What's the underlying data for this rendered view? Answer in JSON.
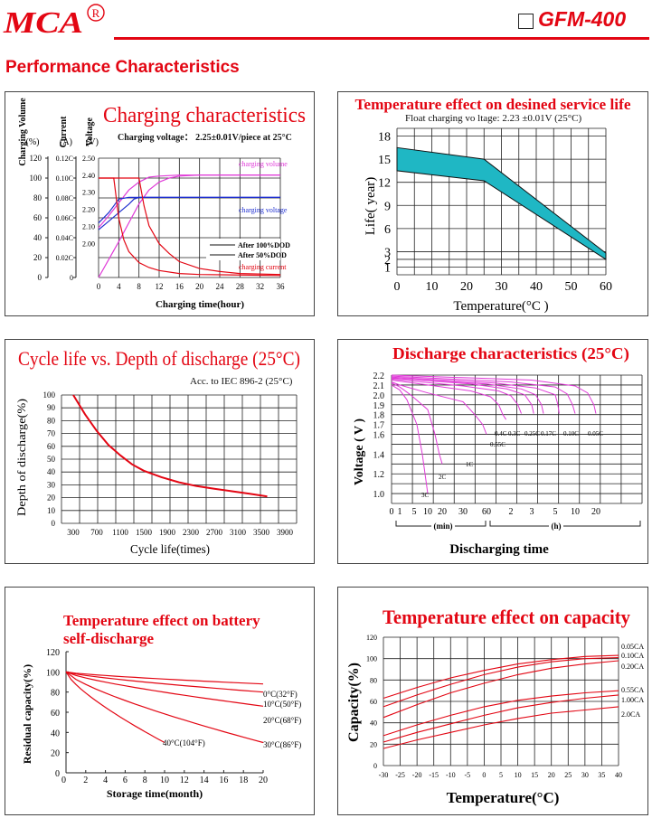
{
  "header": {
    "model": "GFM-400",
    "brand": "MCA",
    "registered": "R",
    "section_title": "Performance Characteristics"
  },
  "colors": {
    "brand": "#e30613",
    "accent_fill": "#1fb7c4",
    "magenta": "#e03ad8",
    "blue": "#2030d0"
  },
  "chart_data": [
    {
      "id": "charging",
      "type": "line",
      "title": "Charging characteristics",
      "subtitle": "Charging voltage： 2.25±0.01V/piece at 25°C",
      "xlabel": "Charging time(hour)",
      "axis_headers": [
        {
          "name": "Charging Volume",
          "unit": "(%)"
        },
        {
          "name": "Current",
          "unit": "(A)"
        },
        {
          "name": "Voltage",
          "unit": "(V)"
        }
      ],
      "x_ticks": [
        0,
        4,
        8,
        12,
        16,
        20,
        24,
        28,
        32,
        36
      ],
      "y_ticks_volume": [
        0,
        20,
        40,
        60,
        80,
        100,
        120
      ],
      "y_ticks_current": [
        "0",
        "0.02C",
        "0.04C",
        "0.06C",
        "0.08C",
        "0.10C",
        "0.12C"
      ],
      "y_ticks_voltage": [
        "2.00",
        "2.10",
        "2.20",
        "2.30",
        "2.40",
        "2.50"
      ],
      "xlim": [
        0,
        36
      ],
      "legend": [
        "After 100%DOD",
        "After 50%DOD"
      ],
      "series_labels": [
        "charging volume",
        "charging voltage",
        "charging current"
      ],
      "series": [
        {
          "name": "charging volume",
          "group": "100%DOD",
          "x": [
            0,
            2,
            4,
            6,
            8,
            10,
            12,
            14,
            16,
            20,
            24,
            36
          ],
          "values": [
            0,
            18,
            36,
            55,
            74,
            88,
            96,
            100,
            102,
            103,
            103,
            103
          ]
        },
        {
          "name": "charging volume",
          "group": "50%DOD",
          "x": [
            0,
            2,
            4,
            6,
            8,
            10,
            12,
            16,
            36
          ],
          "values": [
            50,
            62,
            75,
            88,
            96,
            101,
            102,
            103,
            103
          ]
        },
        {
          "name": "charging voltage",
          "group": "100%DOD",
          "x": [
            0,
            2,
            4,
            6,
            7,
            8,
            12,
            36
          ],
          "values": [
            2.08,
            2.13,
            2.18,
            2.23,
            2.26,
            2.27,
            2.27,
            2.27
          ]
        },
        {
          "name": "charging voltage",
          "group": "50%DOD",
          "x": [
            0,
            2,
            3,
            4,
            6,
            36
          ],
          "values": [
            2.12,
            2.18,
            2.22,
            2.26,
            2.27,
            2.27
          ]
        },
        {
          "name": "charging current",
          "group": "100%DOD",
          "x": [
            0,
            8,
            9,
            10,
            12,
            14,
            16,
            20,
            24,
            28,
            36
          ],
          "values": [
            0.1,
            0.1,
            0.072,
            0.052,
            0.034,
            0.024,
            0.016,
            0.009,
            0.006,
            0.004,
            0.003
          ]
        },
        {
          "name": "charging current",
          "group": "50%DOD",
          "x": [
            0,
            3,
            4,
            5,
            6,
            8,
            10,
            12,
            16,
            20,
            36
          ],
          "values": [
            0.1,
            0.1,
            0.06,
            0.038,
            0.026,
            0.015,
            0.01,
            0.007,
            0.004,
            0.003,
            0.002
          ]
        }
      ]
    },
    {
      "id": "temp_life",
      "type": "area",
      "title": "Temperature effect on desined service life",
      "subtitle": "Float charging vo  ltage:  2.23 ±0.01V   (25°C)",
      "xlabel": "Temperature(°C )",
      "ylabel": "Life(  year)",
      "x_ticks": [
        0,
        10,
        20,
        30,
        40,
        50,
        60
      ],
      "y_ticks": [
        1,
        2,
        3,
        6,
        9,
        12,
        15,
        18
      ],
      "xlim": [
        0,
        60
      ],
      "ylim": [
        0,
        19
      ],
      "band_upper": {
        "x": [
          0,
          25,
          60
        ],
        "values": [
          16.5,
          15,
          2.8
        ]
      },
      "band_lower": {
        "x": [
          0,
          25,
          60
        ],
        "values": [
          13.5,
          12.2,
          2
        ]
      }
    },
    {
      "id": "cycle_life",
      "type": "line",
      "title": "Cycle life vs. Depth of discharge (25°C)",
      "subtitle": "Acc. to IEC 896-2 (25°C)",
      "xlabel": "Cycle life(times)",
      "ylabel": "Depth of discharge(%)",
      "x_ticks": [
        300,
        700,
        1100,
        1500,
        1900,
        2300,
        2700,
        3100,
        3500,
        3900
      ],
      "y_ticks": [
        0,
        10,
        20,
        30,
        40,
        50,
        60,
        70,
        80,
        90,
        100
      ],
      "xlim": [
        100,
        4100
      ],
      "ylim": [
        0,
        100
      ],
      "series": [
        {
          "name": "",
          "x": [
            300,
            500,
            700,
            900,
            1100,
            1300,
            1500,
            1800,
            2100,
            2400,
            2700,
            3000,
            3300,
            3600
          ],
          "values": [
            100,
            85,
            72,
            61,
            53,
            46,
            41,
            36,
            32,
            29,
            27,
            25,
            23,
            21
          ]
        }
      ]
    },
    {
      "id": "discharge",
      "type": "line",
      "title": "Discharge characteristics (25°C)",
      "xlabel": "Discharging time",
      "ylabel": "Voltage  ( V )",
      "y_ticks": [
        1.0,
        1.2,
        1.4,
        1.6,
        1.7,
        1.8,
        1.9,
        2.0,
        2.1,
        2.2
      ],
      "x_tick_labels": [
        "0",
        "1",
        "5",
        "10",
        "20",
        "30",
        "60",
        "2",
        "3",
        "5",
        "10",
        "20"
      ],
      "unit_min": "(min)",
      "unit_h": "(h)",
      "ylim": [
        0.9,
        2.2
      ],
      "curve_labels": [
        "3C",
        "2C",
        "1C",
        "0.55C",
        "0.4C",
        "0.3C",
        "0.25C",
        "0.17C",
        "0.10C",
        "0.05C"
      ],
      "series": [
        {
          "name": "3C",
          "x_minutes": [
            0,
            1,
            3,
            6,
            8,
            9,
            10
          ],
          "values": [
            2.1,
            2.05,
            1.95,
            1.7,
            1.4,
            1.2,
            1.0
          ]
        },
        {
          "name": "2C",
          "x_minutes": [
            0,
            1,
            4,
            10,
            15,
            18,
            20
          ],
          "values": [
            2.12,
            2.08,
            2.0,
            1.85,
            1.6,
            1.4,
            1.3
          ]
        },
        {
          "name": "1C",
          "x_minutes": [
            0,
            1,
            10,
            30,
            45,
            55,
            60
          ],
          "values": [
            2.13,
            2.1,
            2.02,
            1.93,
            1.8,
            1.7,
            1.6
          ]
        },
        {
          "name": "0.55C",
          "x_minutes": [
            0,
            10,
            40,
            70,
            90,
            100,
            108
          ],
          "values": [
            2.15,
            2.1,
            2.04,
            1.98,
            1.9,
            1.8,
            1.75
          ]
        },
        {
          "name": "0.4C",
          "x_minutes": [
            0,
            30,
            90,
            120,
            140,
            150
          ],
          "values": [
            2.16,
            2.09,
            2.04,
            1.99,
            1.9,
            1.81
          ]
        },
        {
          "name": "0.3C",
          "x_minutes": [
            0,
            40,
            110,
            160,
            180,
            190
          ],
          "values": [
            2.17,
            2.11,
            2.06,
            2.0,
            1.9,
            1.81
          ]
        },
        {
          "name": "0.25C",
          "x_minutes": [
            0,
            60,
            150,
            200,
            230,
            240
          ],
          "values": [
            2.17,
            2.11,
            2.06,
            2.0,
            1.9,
            1.81
          ]
        },
        {
          "name": "0.17C",
          "x_minutes": [
            0,
            80,
            200,
            300,
            340,
            360
          ],
          "values": [
            2.18,
            2.12,
            2.07,
            2.0,
            1.9,
            1.81
          ]
        },
        {
          "name": "0.10C",
          "x_minutes": [
            0,
            120,
            300,
            480,
            560,
            600
          ],
          "values": [
            2.19,
            2.13,
            2.08,
            2.01,
            1.9,
            1.81
          ]
        },
        {
          "name": "0.05C",
          "x_minutes": [
            0,
            180,
            600,
            960,
            1140,
            1200
          ],
          "values": [
            2.2,
            2.15,
            2.09,
            2.02,
            1.9,
            1.81
          ]
        }
      ]
    },
    {
      "id": "self_discharge",
      "type": "line",
      "title": "Temperature effect on battery self-discharge",
      "title_lines": [
        "Temperature effect on battery",
        "self-discharge"
      ],
      "xlabel": "Storage time(month)",
      "ylabel": "Residual capacity(%)",
      "x_ticks": [
        2,
        4,
        6,
        8,
        10,
        12,
        14,
        16,
        18,
        20
      ],
      "y_ticks": [
        0,
        20,
        40,
        60,
        80,
        100,
        120
      ],
      "xlim": [
        0,
        20
      ],
      "ylim": [
        0,
        120
      ],
      "series": [
        {
          "name": "0°C(32°F)",
          "x": [
            0,
            20
          ],
          "values": [
            100,
            88
          ]
        },
        {
          "name": "10°C(50°F)",
          "x": [
            0,
            20
          ],
          "values": [
            100,
            80
          ]
        },
        {
          "name": "20°C(68°F)",
          "x": [
            0,
            20
          ],
          "values": [
            100,
            66
          ]
        },
        {
          "name": "30°C(86°F)",
          "x": [
            0,
            20
          ],
          "values": [
            100,
            30
          ]
        },
        {
          "name": "40°C(104°F)",
          "x": [
            0,
            10
          ],
          "values": [
            100,
            30
          ]
        }
      ]
    },
    {
      "id": "temp_capacity",
      "type": "line",
      "title": "Temperature effect on capacity",
      "xlabel": "Temperature(°C)",
      "ylabel": "Capacity(%)",
      "x_ticks": [
        -30,
        -25,
        -20,
        -15,
        -10,
        -5,
        0,
        5,
        10,
        15,
        20,
        25,
        30,
        35,
        40
      ],
      "y_ticks": [
        0,
        20,
        40,
        60,
        80,
        100,
        120
      ],
      "xlim": [
        -30,
        40
      ],
      "ylim": [
        0,
        120
      ],
      "series": [
        {
          "name": "0.05CA",
          "x": [
            -30,
            -20,
            -10,
            0,
            10,
            20,
            30,
            40
          ],
          "values": [
            63,
            73,
            82,
            89,
            95,
            99,
            102,
            103
          ]
        },
        {
          "name": "0.10CA",
          "x": [
            -30,
            -20,
            -10,
            0,
            10,
            20,
            30,
            40
          ],
          "values": [
            55,
            66,
            76,
            85,
            92,
            97,
            100,
            101
          ]
        },
        {
          "name": "0.20CA",
          "x": [
            -30,
            -20,
            -10,
            0,
            10,
            20,
            30,
            40
          ],
          "values": [
            45,
            57,
            68,
            77,
            85,
            91,
            95,
            98
          ]
        },
        {
          "name": "0.55CA",
          "x": [
            -30,
            -20,
            -10,
            0,
            10,
            20,
            30,
            40
          ],
          "values": [
            28,
            38,
            47,
            55,
            61,
            65,
            68,
            70
          ]
        },
        {
          "name": "1.00CA",
          "x": [
            -30,
            -20,
            -10,
            0,
            10,
            20,
            30,
            40
          ],
          "values": [
            22,
            31,
            39,
            47,
            54,
            59,
            63,
            66
          ]
        },
        {
          "name": "2.0CA",
          "x": [
            -30,
            -20,
            -10,
            0,
            10,
            20,
            30,
            40
          ],
          "values": [
            16,
            24,
            31,
            38,
            44,
            49,
            52,
            55
          ]
        }
      ]
    }
  ]
}
